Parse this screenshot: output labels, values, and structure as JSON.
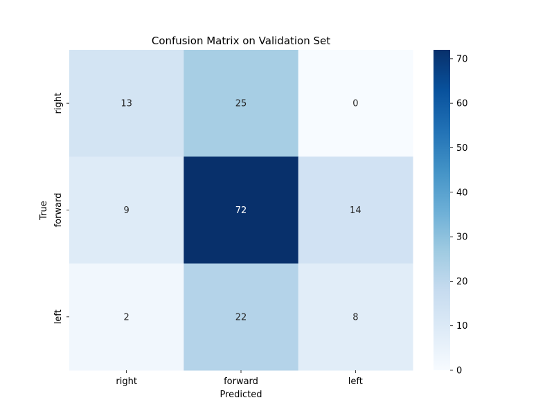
{
  "chart_data": {
    "type": "heatmap",
    "title": "Confusion Matrix on Validation Set",
    "xlabel": "Predicted",
    "ylabel": "True",
    "x_categories": [
      "right",
      "forward",
      "left"
    ],
    "y_categories": [
      "right",
      "forward",
      "left"
    ],
    "values": [
      [
        13,
        25,
        0
      ],
      [
        9,
        72,
        14
      ],
      [
        2,
        22,
        8
      ]
    ],
    "colormap": "Blues",
    "colorbar": {
      "range": [
        0,
        72
      ],
      "ticks": [
        0,
        10,
        20,
        30,
        40,
        50,
        60,
        70
      ]
    },
    "grid": false
  }
}
